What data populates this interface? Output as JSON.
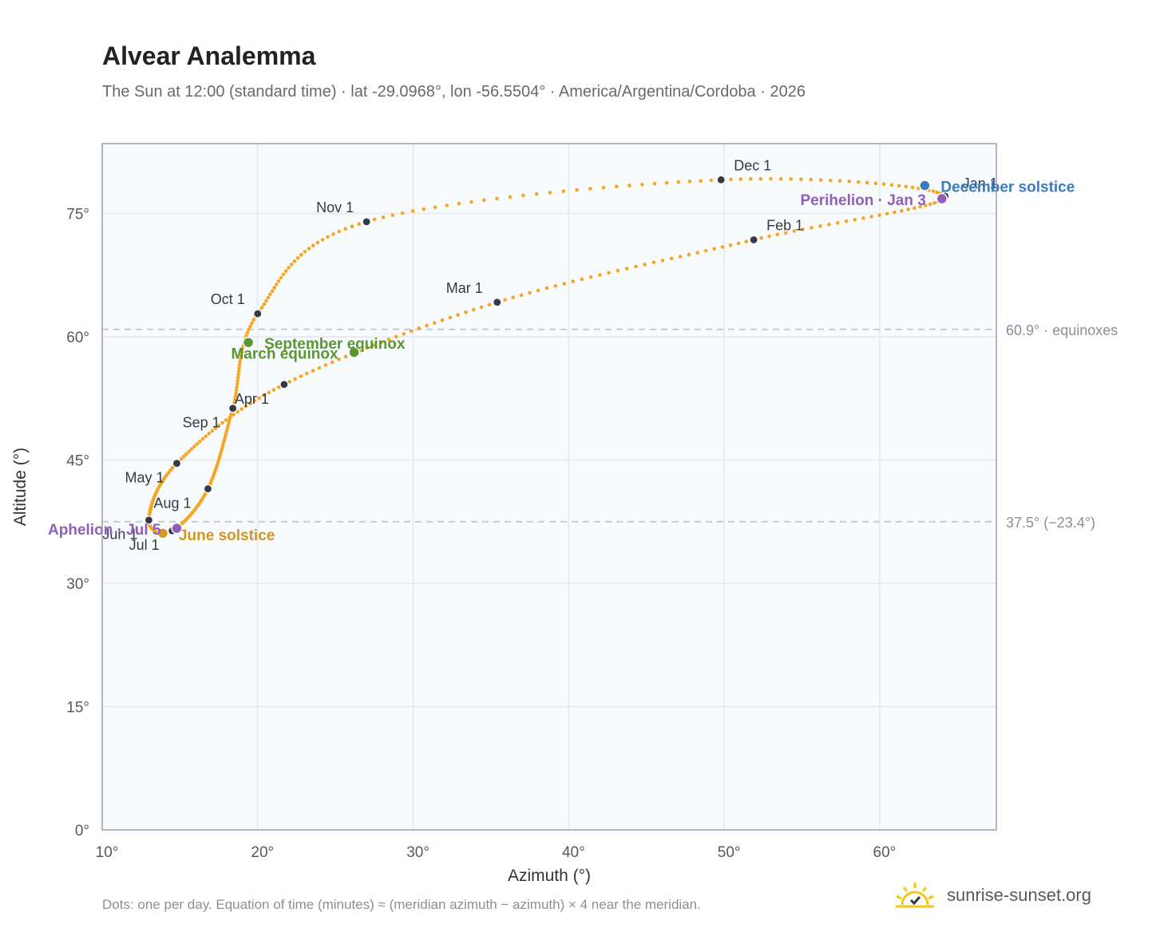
{
  "title": "Alvear Analemma",
  "subtitle": "The Sun at 12:00 (standard time) · lat -29.0968°, lon -56.5504° · America/Argentina/Cordoba · 2026",
  "footnote": "Dots: one per day. Equation of time (minutes) ≈ (meridian azimuth − azimuth) × 4 near the meridian.",
  "brand": {
    "text": "sunrise-sunset.org",
    "icon": "sun-logo-icon",
    "color": "#f5c518"
  },
  "colors": {
    "curve": "#f5a623",
    "month_dot": "#333a44",
    "equinox": "#5a9632",
    "june_solstice": "#d4961e",
    "december_solstice": "#3a7cc0",
    "apsis": "#9060b8",
    "reference_line": "#c0c6d0",
    "plot_bg": "#f8fbfe",
    "grid": "#e4e8ee",
    "axis": "#98a2b0"
  },
  "chart_data": {
    "type": "scatter",
    "xlabel": "Azimuth (°)",
    "ylabel": "Altitude (°)",
    "xlim": [
      10,
      67.5
    ],
    "ylim": [
      0,
      83.5
    ],
    "xticks": [
      10,
      20,
      30,
      40,
      50,
      60
    ],
    "xtick_labels": [
      "10°",
      "20°",
      "30°",
      "40°",
      "50°",
      "60°"
    ],
    "yticks": [
      0,
      15,
      30,
      45,
      60,
      75
    ],
    "ytick_labels": [
      "0°",
      "15°",
      "30°",
      "45°",
      "60°",
      "75°"
    ],
    "grid": true,
    "reference_lines": [
      {
        "y": 60.9,
        "label": "60.9° · equinoxes"
      },
      {
        "y": 37.5,
        "label": "37.5° (−23.4°)"
      }
    ],
    "months": [
      {
        "label": "Jan 1",
        "x": 64.2,
        "y": 77.1
      },
      {
        "label": "Feb 1",
        "x": 51.9,
        "y": 71.8
      },
      {
        "label": "Mar 1",
        "x": 35.4,
        "y": 64.2
      },
      {
        "label": "Apr 1",
        "x": 21.7,
        "y": 54.2
      },
      {
        "label": "May 1",
        "x": 14.8,
        "y": 44.6
      },
      {
        "label": "Jun 1",
        "x": 13.0,
        "y": 37.7
      },
      {
        "label": "Jul 1",
        "x": 14.5,
        "y": 36.4
      },
      {
        "label": "Aug 1",
        "x": 16.8,
        "y": 41.5
      },
      {
        "label": "Sep 1",
        "x": 18.4,
        "y": 51.3
      },
      {
        "label": "Oct 1",
        "x": 20.0,
        "y": 62.8
      },
      {
        "label": "Nov 1",
        "x": 27.0,
        "y": 74.0
      },
      {
        "label": "Dec 1",
        "x": 49.8,
        "y": 79.1
      }
    ],
    "events": [
      {
        "label": "March equinox",
        "x": 26.2,
        "y": 58.1,
        "kind": "equinox"
      },
      {
        "label": "September equinox",
        "x": 19.4,
        "y": 59.3,
        "kind": "equinox"
      },
      {
        "label": "June solstice",
        "x": 13.9,
        "y": 36.1,
        "kind": "june_solstice"
      },
      {
        "label": "December solstice",
        "x": 62.9,
        "y": 78.4,
        "kind": "december_solstice"
      },
      {
        "label": "Perihelion · Jan 3",
        "x": 64.0,
        "y": 76.8,
        "kind": "apsis"
      },
      {
        "label": "Aphelion · Jul 5",
        "x": 14.8,
        "y": 36.7,
        "kind": "apsis"
      }
    ]
  }
}
